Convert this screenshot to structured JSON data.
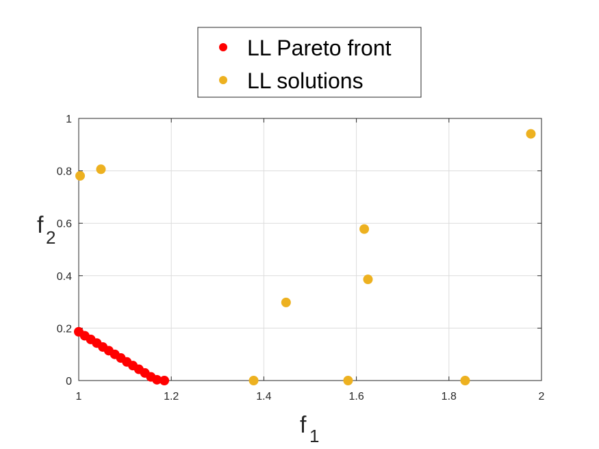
{
  "colors": {
    "pareto": "#ff0000",
    "solutions": "#edb120",
    "grid": "#dcdcdc",
    "axis": "#262626"
  },
  "chart_data": {
    "type": "scatter",
    "xlim": [
      1,
      2
    ],
    "ylim": [
      0,
      1
    ],
    "x_ticks": [
      "1",
      "1.2",
      "1.4",
      "1.6",
      "1.8",
      "2"
    ],
    "y_ticks": [
      "0",
      "0.2",
      "0.4",
      "0.6",
      "0.8",
      "1"
    ],
    "xlabel_main": "f",
    "xlabel_sub": "1",
    "ylabel_main": "f",
    "ylabel_sub": "2",
    "grid": true,
    "legend_position": "top-center",
    "series": [
      {
        "name": "LL Pareto front",
        "color": "#ff0000",
        "points": [
          [
            1.0,
            0.186
          ],
          [
            1.013,
            0.171
          ],
          [
            1.026,
            0.157
          ],
          [
            1.039,
            0.143
          ],
          [
            1.052,
            0.128
          ],
          [
            1.065,
            0.114
          ],
          [
            1.078,
            0.1
          ],
          [
            1.091,
            0.086
          ],
          [
            1.104,
            0.071
          ],
          [
            1.117,
            0.057
          ],
          [
            1.13,
            0.043
          ],
          [
            1.143,
            0.029
          ],
          [
            1.156,
            0.014
          ],
          [
            1.169,
            0.003
          ],
          [
            1.185,
            0.0
          ]
        ]
      },
      {
        "name": "LL solutions",
        "color": "#edb120",
        "points": [
          [
            1.003,
            0.781
          ],
          [
            1.048,
            0.806
          ],
          [
            1.378,
            0.0
          ],
          [
            1.448,
            0.298
          ],
          [
            1.582,
            0.0
          ],
          [
            1.617,
            0.578
          ],
          [
            1.625,
            0.386
          ],
          [
            1.835,
            0.0
          ],
          [
            1.977,
            0.941
          ]
        ]
      }
    ]
  }
}
